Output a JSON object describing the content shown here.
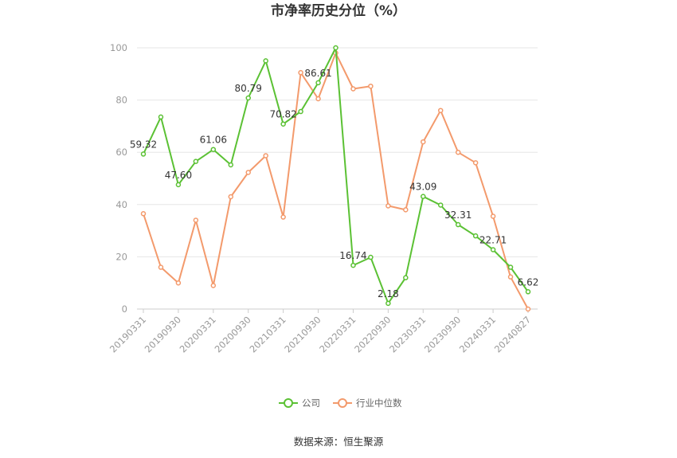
{
  "chart_data": {
    "type": "line",
    "title": "市净率历史分位（%）",
    "source": "数据来源：恒生聚源",
    "ylim": [
      0,
      100
    ],
    "yticks": [
      0,
      20,
      40,
      60,
      80,
      100
    ],
    "grid": true,
    "legend_position": "bottom",
    "x": [
      "20190331",
      "20190630",
      "20190930",
      "20191231",
      "20200331",
      "20200630",
      "20200930",
      "20201231",
      "20210331",
      "20210630",
      "20210930",
      "20211231",
      "20220331",
      "20220630",
      "20220930",
      "20221231",
      "20230331",
      "20230630",
      "20230930",
      "20231231",
      "20240331",
      "20240630",
      "20240827"
    ],
    "x_tick_labels": [
      "20190331",
      "20190930",
      "20200331",
      "20200930",
      "20210331",
      "20210930",
      "20220331",
      "20220930",
      "20230331",
      "20230930",
      "20240331",
      "20240827"
    ],
    "series": [
      {
        "name": "公司",
        "color": "#5bc134",
        "values": [
          59.32,
          73.5,
          47.6,
          56.5,
          61.06,
          55.2,
          80.79,
          95.0,
          70.82,
          75.6,
          86.61,
          100.0,
          16.74,
          19.8,
          2.18,
          12.0,
          43.09,
          39.8,
          32.31,
          28.0,
          22.71,
          16.0,
          6.62
        ],
        "labels": [
          "59.32",
          null,
          "47.60",
          null,
          "61.06",
          null,
          "80.79",
          null,
          "70.82",
          null,
          "86.61",
          null,
          "16.74",
          null,
          "2.18",
          null,
          "43.09",
          null,
          "32.31",
          null,
          "22.71",
          null,
          "6.62"
        ]
      },
      {
        "name": "行业中位数",
        "color": "#f39a6c",
        "values": [
          36.5,
          16.0,
          10.0,
          34.0,
          9.0,
          43.0,
          52.3,
          58.7,
          35.2,
          90.5,
          80.5,
          98.0,
          84.3,
          85.3,
          39.5,
          38.0,
          64.0,
          76.0,
          60.0,
          56.0,
          35.5,
          12.3,
          0.0
        ]
      }
    ]
  }
}
